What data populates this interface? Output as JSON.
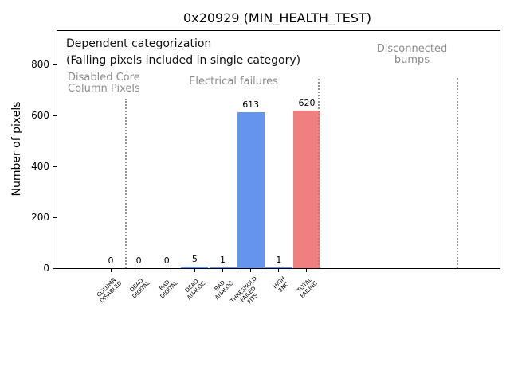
{
  "chart_data": {
    "type": "bar",
    "title": "0x20929 (MIN_HEALTH_TEST)",
    "ylabel": "Number of pixels",
    "xlabel": "",
    "categories": [
      "COLUMN\nDISABLED",
      "DEAD\nDIGITAL",
      "BAD\nDIGITAL",
      "DEAD\nANALOG",
      "BAD\nANALOG",
      "THRESHOLD\nFAILED\nFITS",
      "HIGH\nENC",
      "TOTAL\nFAILING"
    ],
    "values": [
      0,
      0,
      0,
      5,
      1,
      613,
      1,
      620
    ],
    "bar_colors": [
      "#6495ed",
      "#6495ed",
      "#6495ed",
      "#6495ed",
      "#6495ed",
      "#6495ed",
      "#6495ed",
      "#f08080"
    ],
    "yticks": [
      0,
      200,
      400,
      600,
      800
    ],
    "ylim": [
      0,
      931
    ],
    "grid": false,
    "legend": "none",
    "annotations": [
      {
        "id": "dependent-categorization-line1",
        "text": "Dependent categorization",
        "color": "#111111"
      },
      {
        "id": "dependent-categorization-line2",
        "text": "(Failing pixels included in single category)",
        "color": "#111111"
      },
      {
        "id": "region-disabled-core-column-pixels",
        "text": "Disabled Core\nColumn Pixels",
        "color": "#8c8c8c"
      },
      {
        "id": "region-electrical-failures",
        "text": "Electrical failures",
        "color": "#8c8c8c"
      },
      {
        "id": "region-disconnected-bumps",
        "text": "Disconnected\nbumps",
        "color": "#8c8c8c"
      }
    ],
    "separators": [
      {
        "between": "COLUMN DISABLED | DEAD DIGITAL",
        "style": "dotted gray vertical line"
      },
      {
        "between": "TOTAL FAILING | disconnected-bumps region",
        "style": "dotted gray vertical line"
      },
      {
        "between": "disconnected-bumps region | right edge",
        "style": "dotted gray vertical line"
      }
    ]
  }
}
